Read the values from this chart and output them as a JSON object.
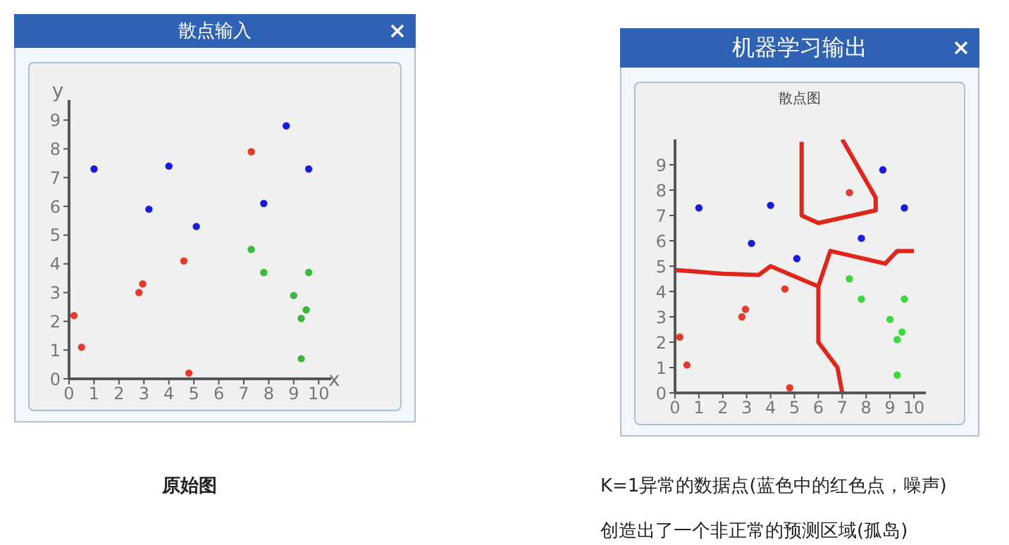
{
  "chart_data": [
    {
      "type": "scatter",
      "title": "散点输入",
      "xlabel": "x",
      "ylabel": "y",
      "xlim": [
        0,
        10.5
      ],
      "xticks": [
        0,
        1,
        2,
        3,
        4,
        5,
        6,
        7,
        8,
        9,
        10
      ],
      "ylim": [
        0,
        9.7
      ],
      "yticks": [
        0,
        1,
        2,
        3,
        4,
        5,
        6,
        7,
        8,
        9
      ],
      "marker": "circle",
      "annotations": [
        "原始图"
      ],
      "series": [
        {
          "color": "#e53a2c",
          "x": [
            0.2,
            0.5,
            2.8,
            2.95,
            4.6,
            4.8,
            7.3
          ],
          "values": [
            2.2,
            1.1,
            3.0,
            3.3,
            4.1,
            0.2,
            7.9
          ]
        },
        {
          "color": "#1a1ae0",
          "x": [
            1.0,
            3.2,
            4.0,
            5.1,
            7.8,
            8.7,
            9.6
          ],
          "values": [
            7.3,
            5.9,
            7.4,
            5.3,
            6.1,
            8.8,
            7.3
          ]
        },
        {
          "color": "#3cb83c",
          "x": [
            7.3,
            7.8,
            9.6,
            9.0,
            9.5,
            9.3,
            9.3
          ],
          "values": [
            4.5,
            3.7,
            3.7,
            2.9,
            2.4,
            2.1,
            0.7
          ]
        }
      ]
    },
    {
      "type": "scatter",
      "title": "机器学习输出",
      "subtitle": "散点图",
      "xlim": [
        0,
        10.5
      ],
      "xticks": [
        0,
        1,
        2,
        3,
        4,
        5,
        6,
        7,
        8,
        9,
        10
      ],
      "ylim": [
        0,
        10
      ],
      "yticks": [
        0,
        1,
        2,
        3,
        4,
        5,
        6,
        7,
        8,
        9
      ],
      "marker": "circle",
      "annotations": [
        "K=1异常的数据点(蓝色中的红色点，噪声)",
        "创造出了一个非正常的预测区域(孤岛)"
      ],
      "series": [
        {
          "color": "#e53a2c",
          "x": [
            0.2,
            0.5,
            2.8,
            2.95,
            4.6,
            4.8,
            7.3
          ],
          "values": [
            2.2,
            1.1,
            3.0,
            3.3,
            4.1,
            0.2,
            7.9
          ]
        },
        {
          "color": "#1a1ae0",
          "x": [
            1.0,
            3.2,
            4.0,
            5.1,
            7.8,
            8.7,
            9.6
          ],
          "values": [
            7.3,
            5.9,
            7.4,
            5.3,
            6.1,
            8.8,
            7.3
          ]
        },
        {
          "color": "#3cd83c",
          "x": [
            7.3,
            7.8,
            9.6,
            9.0,
            9.5,
            9.3,
            9.3
          ],
          "values": [
            4.5,
            3.7,
            3.7,
            2.9,
            2.4,
            2.1,
            0.7
          ]
        },
        {
          "type": "line",
          "color": "#e0251b",
          "marker": "none",
          "x": [
            0,
            1,
            2,
            3.5,
            4,
            5,
            6,
            6,
            6.8,
            7,
            6.8,
            6,
            6,
            6.5,
            8.8,
            9.3,
            10
          ],
          "values": [
            4.85,
            4.78,
            4.7,
            4.65,
            5.0,
            4.6,
            4.2,
            2.0,
            1.0,
            0,
            1.0,
            2.0,
            4.2,
            5.6,
            5.1,
            5.6,
            5.6
          ]
        },
        {
          "type": "line",
          "color": "#e0251b",
          "marker": "none",
          "x": [
            5.3,
            5.3,
            6.0,
            8.4,
            8.4,
            7.0
          ],
          "values": [
            9.9,
            7.0,
            6.7,
            7.2,
            7.7,
            10.0
          ]
        }
      ]
    }
  ]
}
